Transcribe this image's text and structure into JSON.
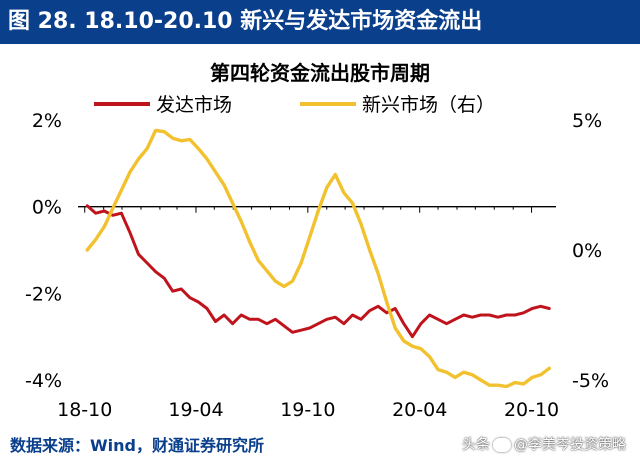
{
  "header": {
    "title": "图 28. 18.10-20.10 新兴与发达市场资金流出"
  },
  "source": {
    "text": "数据来源：Wind，财通证券研究所"
  },
  "watermark": {
    "prefix": "头条",
    "handle": "@李美岑投资策略"
  },
  "chart_data": {
    "type": "line",
    "title": "第四轮资金流出股市周期",
    "legend_placement": "top",
    "x_ticks": [
      "18-10",
      "19-04",
      "19-10",
      "20-04",
      "20-10"
    ],
    "y_left": {
      "ylim": [
        -4,
        2
      ],
      "ticks": [
        "2%",
        "0%",
        "-2%",
        "-4%"
      ]
    },
    "y_right": {
      "ylim": [
        -5,
        5
      ],
      "ticks": [
        "5%",
        "0%",
        "-5%"
      ]
    },
    "series": [
      {
        "name": "发达市场",
        "axis": "left",
        "color": "#c0141c",
        "x": [
          "2018-10-05",
          "2018-10-19",
          "2018-11-02",
          "2018-11-16",
          "2018-11-30",
          "2018-12-14",
          "2018-12-28",
          "2019-01-11",
          "2019-01-25",
          "2019-02-08",
          "2019-02-22",
          "2019-03-08",
          "2019-03-22",
          "2019-04-05",
          "2019-04-19",
          "2019-05-03",
          "2019-05-17",
          "2019-05-31",
          "2019-06-14",
          "2019-06-28",
          "2019-07-12",
          "2019-07-26",
          "2019-08-09",
          "2019-08-23",
          "2019-09-06",
          "2019-09-20",
          "2019-10-04",
          "2019-10-18",
          "2019-11-01",
          "2019-11-15",
          "2019-11-29",
          "2019-12-13",
          "2019-12-27",
          "2020-01-10",
          "2020-01-24",
          "2020-02-07",
          "2020-02-21",
          "2020-03-06",
          "2020-03-20",
          "2020-04-03",
          "2020-04-17",
          "2020-05-01",
          "2020-05-15",
          "2020-05-29",
          "2020-06-12",
          "2020-06-26",
          "2020-07-10",
          "2020-07-24",
          "2020-08-07",
          "2020-08-21",
          "2020-09-04",
          "2020-09-18",
          "2020-10-02",
          "2020-10-16",
          "2020-10-30"
        ],
        "values": [
          0.02,
          -0.15,
          -0.1,
          -0.2,
          -0.15,
          -0.6,
          -1.1,
          -1.3,
          -1.5,
          -1.65,
          -1.95,
          -1.9,
          -2.1,
          -2.2,
          -2.35,
          -2.65,
          -2.5,
          -2.7,
          -2.5,
          -2.6,
          -2.6,
          -2.7,
          -2.6,
          -2.75,
          -2.9,
          -2.85,
          -2.8,
          -2.7,
          -2.6,
          -2.55,
          -2.7,
          -2.5,
          -2.6,
          -2.4,
          -2.3,
          -2.45,
          -2.35,
          -2.7,
          -3.0,
          -2.7,
          -2.5,
          -2.6,
          -2.7,
          -2.6,
          -2.5,
          -2.55,
          -2.5,
          -2.5,
          -2.55,
          -2.5,
          -2.5,
          -2.45,
          -2.35,
          -2.3,
          -2.35
        ]
      },
      {
        "name": "新兴市场（右）",
        "axis": "right",
        "color": "#f2c12e",
        "x": [
          "2018-10-05",
          "2018-10-19",
          "2018-11-02",
          "2018-11-16",
          "2018-11-30",
          "2018-12-14",
          "2018-12-28",
          "2019-01-11",
          "2019-01-25",
          "2019-02-08",
          "2019-02-22",
          "2019-03-08",
          "2019-03-22",
          "2019-04-05",
          "2019-04-19",
          "2019-05-03",
          "2019-05-17",
          "2019-05-31",
          "2019-06-14",
          "2019-06-28",
          "2019-07-12",
          "2019-07-26",
          "2019-08-09",
          "2019-08-23",
          "2019-09-06",
          "2019-09-20",
          "2019-10-04",
          "2019-10-18",
          "2019-11-01",
          "2019-11-15",
          "2019-11-29",
          "2019-12-13",
          "2019-12-27",
          "2020-01-10",
          "2020-01-24",
          "2020-02-07",
          "2020-02-21",
          "2020-03-06",
          "2020-03-20",
          "2020-04-03",
          "2020-04-17",
          "2020-05-01",
          "2020-05-15",
          "2020-05-29",
          "2020-06-12",
          "2020-06-26",
          "2020-07-10",
          "2020-07-24",
          "2020-08-07",
          "2020-08-21",
          "2020-09-04",
          "2020-09-18",
          "2020-10-02",
          "2020-10-16",
          "2020-10-30"
        ],
        "values": [
          0.0,
          0.4,
          0.9,
          1.6,
          2.3,
          3.0,
          3.5,
          3.9,
          4.6,
          4.55,
          4.3,
          4.2,
          4.25,
          3.9,
          3.5,
          3.0,
          2.5,
          1.8,
          1.1,
          0.3,
          -0.4,
          -0.8,
          -1.2,
          -1.4,
          -1.2,
          -0.5,
          0.5,
          1.5,
          2.4,
          2.9,
          2.2,
          1.8,
          1.0,
          0.0,
          -0.9,
          -2.0,
          -3.0,
          -3.5,
          -3.7,
          -3.8,
          -4.1,
          -4.6,
          -4.7,
          -4.9,
          -4.7,
          -4.8,
          -5.0,
          -5.2,
          -5.2,
          -5.25,
          -5.1,
          -5.15,
          -4.9,
          -4.8,
          -4.55
        ]
      }
    ]
  }
}
